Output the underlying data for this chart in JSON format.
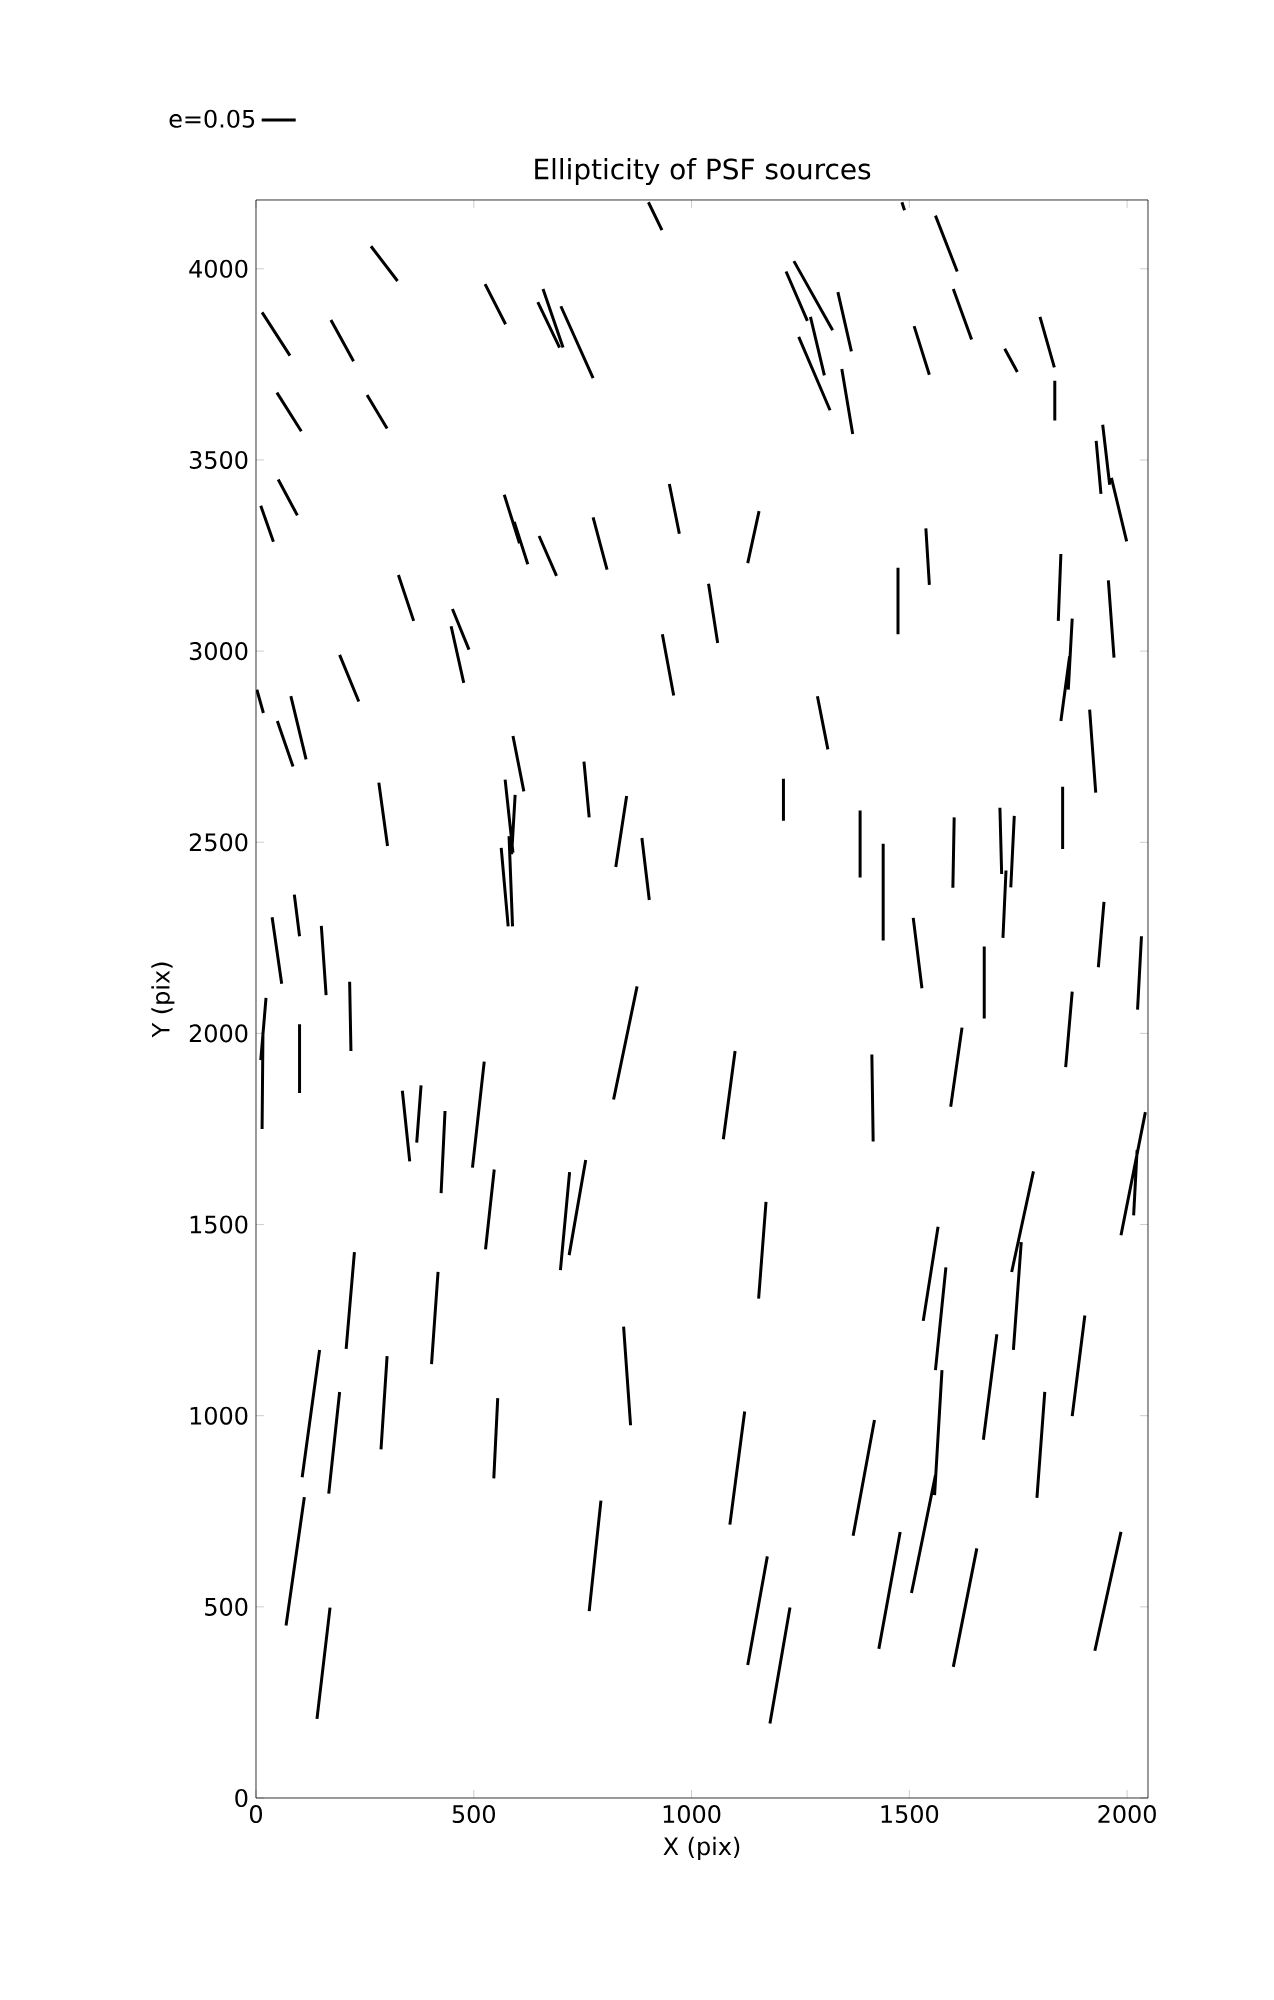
{
  "chart_data": {
    "type": "line",
    "title": "Ellipticity of PSF sources",
    "xlabel": "X (pix)",
    "ylabel": "Y (pix)",
    "xlim": [
      0,
      2048
    ],
    "ylim": [
      0,
      4180
    ],
    "xticks": [
      0,
      500,
      1000,
      1500,
      2000
    ],
    "yticks": [
      0,
      500,
      1000,
      1500,
      2000,
      2500,
      3000,
      3500,
      4000
    ],
    "legend": "top left",
    "series": [
      {
        "name": "e=0.05",
        "color": "#000000",
        "x": [
          901,
          932,
          null,
          1483,
          1489,
          null,
          1560,
          1610,
          null,
          264,
          325,
          null,
          14,
          78,
          null,
          172,
          224,
          null,
          526,
          573,
          null,
          647,
          697,
          null,
          659,
          705,
          null,
          700,
          774,
          null,
          1217,
          1266,
          null,
          1235,
          1324,
          null,
          1246,
          1318,
          null,
          1273,
          1305,
          null,
          1336,
          1367,
          null,
          1345,
          1370,
          null,
          1511,
          1546,
          null,
          1601,
          1643,
          null,
          1719,
          1748,
          null,
          1800,
          1833,
          null,
          1834,
          1834,
          null,
          48,
          104,
          null,
          255,
          301,
          null,
          1929,
          1940,
          null,
          1944,
          1960,
          null,
          1964,
          1999,
          null,
          51,
          95,
          null,
          11,
          40,
          null,
          570,
          605,
          null,
          593,
          624,
          null,
          650,
          690,
          null,
          774,
          806,
          null,
          949,
          972,
          null,
          1155,
          1129,
          null,
          327,
          362,
          null,
          451,
          489,
          null,
          448,
          477,
          null,
          933,
          959,
          null,
          1039,
          1060,
          null,
          1474,
          1474,
          null,
          1538,
          1546,
          null,
          1848,
          1842,
          null,
          1874,
          1865,
          null,
          1868,
          1848,
          null,
          1957,
          1970,
          null,
          192,
          236,
          null,
          2,
          17,
          null,
          1289,
          1313,
          null,
          1914,
          1928,
          null,
          49,
          85,
          null,
          80,
          115,
          null,
          590,
          615,
          null,
          282,
          302,
          null,
          572,
          590,
          null,
          595,
          587,
          null,
          563,
          579,
          null,
          581,
          589,
          null,
          753,
          765,
          null,
          851,
          826,
          null,
          886,
          903,
          null,
          1211,
          1211,
          null,
          1387,
          1387,
          null,
          1440,
          1440,
          null,
          1603,
          1600,
          null,
          1708,
          1712,
          null,
          1741,
          1733,
          null,
          1722,
          1715,
          null,
          1852,
          1852,
          null,
          1509,
          1529,
          null,
          1672,
          1672,
          null,
          1947,
          1934,
          null,
          2033,
          2024,
          null,
          88,
          100,
          null,
          37,
          59,
          null,
          150,
          161,
          null,
          215,
          218,
          null,
          23,
          11,
          null,
          16,
          14,
          null,
          100,
          100,
          null,
          875,
          821,
          null,
          1100,
          1073,
          null,
          1414,
          1417,
          null,
          1621,
          1595,
          null,
          1874,
          1859,
          null,
          336,
          353,
          null,
          379,
          369,
          null,
          434,
          425,
          null,
          524,
          497,
          null,
          547,
          527,
          null,
          720,
          699,
          null,
          757,
          719,
          null,
          1171,
          1154,
          null,
          1566,
          1532,
          null,
          1584,
          1560,
          null,
          1785,
          1735,
          null,
          1757,
          1739,
          null,
          2042,
          1986,
          null,
          2023,
          2015,
          null,
          226,
          207,
          null,
          418,
          403,
          null,
          146,
          106,
          null,
          192,
          167,
          null,
          301,
          287,
          null,
          555,
          546,
          null,
          844,
          860,
          null,
          1122,
          1088,
          null,
          1575,
          1558,
          null,
          1560,
          1505,
          null,
          1420,
          1371,
          null,
          1701,
          1670,
          null,
          1811,
          1793,
          null,
          1903,
          1874,
          null,
          111,
          69,
          null,
          170,
          140,
          null,
          792,
          765,
          null,
          1174,
          1129,
          null,
          1226,
          1180,
          null,
          1479,
          1430,
          null,
          1655,
          1601,
          null,
          1986,
          1926
        ],
        "values": [
          4174,
          4101,
          null,
          4174,
          4153,
          null,
          4139,
          3993,
          null,
          4059,
          3968,
          null,
          3886,
          3773,
          null,
          3866,
          3758,
          null,
          3960,
          3855,
          null,
          3913,
          3794,
          null,
          3947,
          3794,
          null,
          3902,
          3714,
          null,
          3993,
          3864,
          null,
          4020,
          3839,
          null,
          3822,
          3630,
          null,
          3874,
          3721,
          null,
          3939,
          3784,
          null,
          3738,
          3568,
          null,
          3850,
          3723,
          null,
          3947,
          3815,
          null,
          3791,
          3730,
          null,
          3874,
          3742,
          null,
          3707,
          3603,
          null,
          3676,
          3575,
          null,
          3670,
          3582,
          null,
          3550,
          3411,
          null,
          3592,
          3435,
          null,
          3453,
          3287,
          null,
          3449,
          3355,
          null,
          3380,
          3286,
          null,
          3409,
          3282,
          null,
          3338,
          3227,
          null,
          3301,
          3197,
          null,
          3350,
          3213,
          null,
          3437,
          3307,
          null,
          3366,
          3230,
          null,
          3199,
          3079,
          null,
          3110,
          3004,
          null,
          3065,
          2917,
          null,
          3044,
          2884,
          null,
          3176,
          3021,
          null,
          3218,
          3044,
          null,
          3321,
          3173,
          null,
          3254,
          3079,
          null,
          3085,
          2899,
          null,
          2986,
          2817,
          null,
          3185,
          2983,
          null,
          2990,
          2868,
          null,
          2899,
          2838,
          null,
          2882,
          2743,
          null,
          2847,
          2630,
          null,
          2817,
          2698,
          null,
          2882,
          2717,
          null,
          2778,
          2633,
          null,
          2656,
          2490,
          null,
          2664,
          2473,
          null,
          2624,
          2469,
          null,
          2485,
          2280,
          null,
          2516,
          2280,
          null,
          2711,
          2565,
          null,
          2621,
          2435,
          null,
          2511,
          2349,
          null,
          2666,
          2556,
          null,
          2583,
          2408,
          null,
          2496,
          2243,
          null,
          2565,
          2381,
          null,
          2590,
          2417,
          null,
          2569,
          2382,
          null,
          2426,
          2250,
          null,
          2645,
          2482,
          null,
          2302,
          2118,
          null,
          2227,
          2039,
          null,
          2344,
          2173,
          null,
          2254,
          2062,
          null,
          2363,
          2254,
          null,
          2304,
          2130,
          null,
          2281,
          2100,
          null,
          2135,
          1954,
          null,
          2093,
          1930,
          null,
          2003,
          1750,
          null,
          2024,
          1844,
          null,
          2123,
          1827,
          null,
          1954,
          1723,
          null,
          1945,
          1717,
          null,
          2015,
          1808,
          null,
          2109,
          1912,
          null,
          1850,
          1665,
          null,
          1864,
          1714,
          null,
          1797,
          1582,
          null,
          1926,
          1649,
          null,
          1644,
          1435,
          null,
          1637,
          1381,
          null,
          1669,
          1420,
          null,
          1559,
          1306,
          null,
          1494,
          1248,
          null,
          1388,
          1119,
          null,
          1639,
          1376,
          null,
          1454,
          1172,
          null,
          1794,
          1472,
          null,
          1695,
          1524,
          null,
          1428,
          1175,
          null,
          1376,
          1135,
          null,
          1172,
          839,
          null,
          1062,
          796,
          null,
          1156,
          912,
          null,
          1046,
          836,
          null,
          1233,
          975,
          null,
          1011,
          715,
          null,
          1119,
          792,
          null,
          844,
          536,
          null,
          989,
          686,
          null,
          1213,
          937,
          null,
          1062,
          785,
          null,
          1262,
          999,
          null,
          787,
          451,
          null,
          498,
          207,
          null,
          778,
          489,
          null,
          632,
          348,
          null,
          498,
          195,
          null,
          696,
          390,
          null,
          653,
          343,
          null,
          696,
          385
        ]
      }
    ]
  }
}
